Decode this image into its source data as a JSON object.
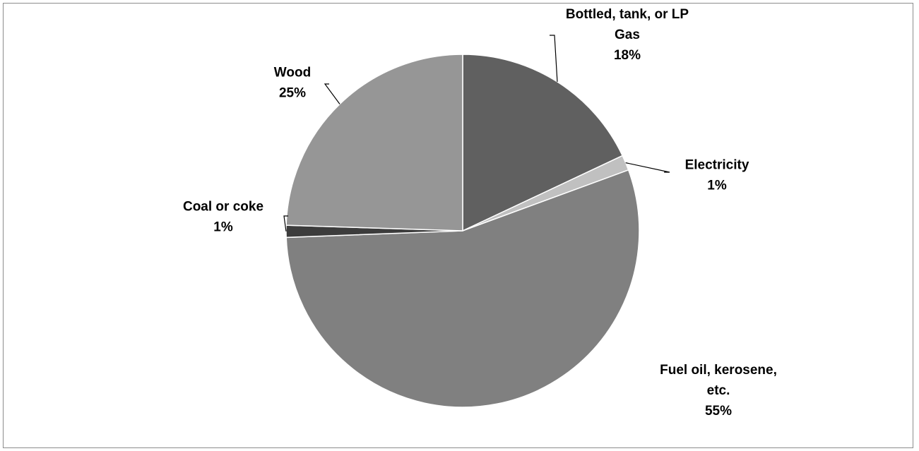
{
  "chart_data": {
    "type": "pie",
    "title": "",
    "slices": [
      {
        "name": "Bottled, tank, or LP Gas",
        "label_lines": [
          "Bottled, tank, or LP",
          "Gas"
        ],
        "value": 18,
        "pct_label": "18%",
        "color": "#606060"
      },
      {
        "name": "Electricity",
        "label_lines": [
          "Electricity"
        ],
        "value": 1.4,
        "pct_label": "1%",
        "color": "#c0c0c0"
      },
      {
        "name": "Fuel oil, kerosene, etc.",
        "label_lines": [
          "Fuel oil, kerosene,",
          "etc."
        ],
        "value": 55,
        "pct_label": "55%",
        "color": "#808080"
      },
      {
        "name": "Coal or coke",
        "label_lines": [
          "Coal or coke"
        ],
        "value": 1.1,
        "pct_label": "1%",
        "color": "#3c3c3c"
      },
      {
        "name": "Wood",
        "label_lines": [
          "Wood"
        ],
        "value": 24.5,
        "pct_label": "25%",
        "color": "#969696"
      }
    ],
    "start_angle_deg": 0,
    "direction": "clockwise",
    "legend": "none",
    "data_labels": "outside with leader lines"
  }
}
